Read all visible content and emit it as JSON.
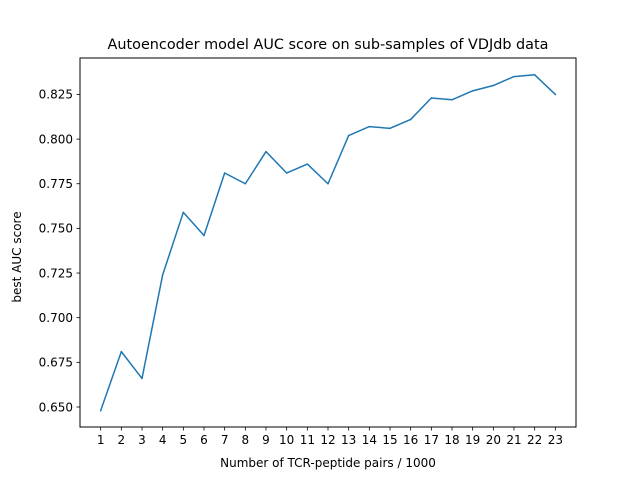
{
  "chart_data": {
    "type": "line",
    "title": "Autoencoder model AUC score on sub-samples of VDJdb data",
    "xlabel": "Number of TCR-peptide pairs / 1000",
    "ylabel": "best AUC score",
    "x": [
      1,
      2,
      3,
      4,
      5,
      6,
      7,
      8,
      9,
      10,
      11,
      12,
      13,
      14,
      15,
      16,
      17,
      18,
      19,
      20,
      21,
      22,
      23
    ],
    "x_tick_labels": [
      "1",
      "2",
      "3",
      "4",
      "5",
      "6",
      "7",
      "8",
      "9",
      "10",
      "11",
      "12",
      "13",
      "14",
      "15",
      "16",
      "17",
      "18",
      "19",
      "20",
      "21",
      "22",
      "23"
    ],
    "series": [
      {
        "values": [
          0.648,
          0.681,
          0.666,
          0.724,
          0.759,
          0.746,
          0.781,
          0.775,
          0.793,
          0.781,
          0.786,
          0.775,
          0.802,
          0.807,
          0.806,
          0.811,
          0.823,
          0.822,
          0.827,
          0.83,
          0.835,
          0.836,
          0.825
        ],
        "color": "#1f77b4"
      }
    ],
    "y_ticks": [
      0.65,
      0.675,
      0.7,
      0.725,
      0.75,
      0.775,
      0.8,
      0.825
    ],
    "y_tick_labels": [
      "0.650",
      "0.675",
      "0.700",
      "0.725",
      "0.750",
      "0.775",
      "0.800",
      "0.825"
    ],
    "xlim": [
      0,
      24
    ],
    "ylim": [
      0.6388,
      0.8454
    ],
    "grid": false
  }
}
